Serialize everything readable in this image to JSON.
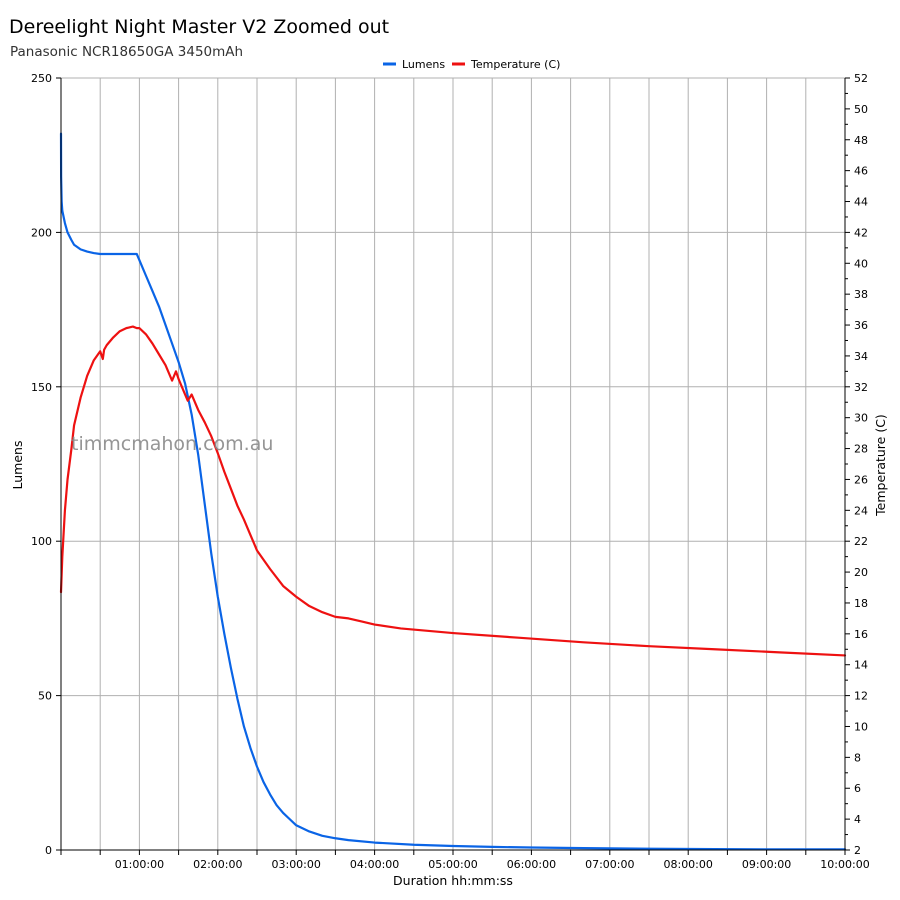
{
  "chart_data": {
    "type": "line",
    "title": "Dereelight Night Master V2 Zoomed out",
    "subtitle": "Panasonic NCR18650GA 3450mAh",
    "watermark": "timmcmahon.com.au",
    "xlabel": "Duration hh:mm:ss",
    "ylabel": "Lumens",
    "y2label": "Temperature (C)",
    "xlim_minutes": [
      0,
      600
    ],
    "ylim": [
      0,
      250
    ],
    "y2lim": [
      2,
      52
    ],
    "x_ticks": [
      {
        "minutes": 60,
        "label": "01:00:00"
      },
      {
        "minutes": 120,
        "label": "02:00:00"
      },
      {
        "minutes": 180,
        "label": "03:00:00"
      },
      {
        "minutes": 240,
        "label": "04:00:00"
      },
      {
        "minutes": 300,
        "label": "05:00:00"
      },
      {
        "minutes": 360,
        "label": "06:00:00"
      },
      {
        "minutes": 420,
        "label": "07:00:00"
      },
      {
        "minutes": 480,
        "label": "08:00:00"
      },
      {
        "minutes": 540,
        "label": "09:00:00"
      },
      {
        "minutes": 600,
        "label": "10:00:00"
      }
    ],
    "y_ticks": [
      "0",
      "50",
      "100",
      "150",
      "200",
      "250"
    ],
    "y2_ticks": [
      "2",
      "4",
      "6",
      "8",
      "10",
      "12",
      "14",
      "16",
      "18",
      "20",
      "22",
      "24",
      "26",
      "28",
      "30",
      "32",
      "34",
      "36",
      "38",
      "40",
      "42",
      "44",
      "46",
      "48",
      "50",
      "52"
    ],
    "grid": true,
    "legend_position": "top-center",
    "series": [
      {
        "name": "Lumens",
        "axis": "left",
        "color": "#0a64e6",
        "x_minutes": [
          0,
          0.1,
          0.5,
          1,
          3,
          5,
          8,
          10,
          15,
          20,
          25,
          30,
          35,
          40,
          45,
          50,
          55,
          58,
          60,
          65,
          70,
          75,
          80,
          85,
          90,
          95,
          100,
          105,
          110,
          115,
          120,
          125,
          130,
          135,
          140,
          145,
          150,
          155,
          160,
          165,
          170,
          175,
          180,
          190,
          200,
          210,
          220,
          240,
          270,
          300,
          330,
          360,
          400,
          450,
          500,
          550,
          600
        ],
        "values": [
          232,
          218,
          210,
          207,
          203,
          200,
          197.5,
          196,
          194.5,
          193.8,
          193.3,
          193,
          193,
          193,
          193,
          193,
          193,
          193,
          191,
          186,
          181,
          176,
          170,
          164,
          158,
          151,
          141,
          128,
          112,
          96,
          82,
          70,
          59,
          49,
          40,
          33,
          27,
          22,
          18,
          14.5,
          12,
          10,
          8,
          6,
          4.6,
          3.8,
          3.2,
          2.4,
          1.7,
          1.3,
          1.0,
          0.8,
          0.6,
          0.4,
          0.3,
          0.2,
          0.2
        ]
      },
      {
        "name": "Temperature (C)",
        "axis": "right",
        "color": "#ee1111",
        "x_minutes": [
          0,
          1,
          3,
          5,
          8,
          10,
          15,
          20,
          25,
          30,
          32,
          33,
          35,
          40,
          45,
          50,
          55,
          58,
          60,
          65,
          70,
          75,
          80,
          85,
          88,
          90,
          95,
          97,
          100,
          105,
          110,
          115,
          120,
          125,
          130,
          135,
          140,
          145,
          150,
          160,
          170,
          180,
          190,
          200,
          210,
          220,
          230,
          240,
          260,
          300,
          350,
          400,
          450,
          500,
          550,
          600
        ],
        "values": [
          18.7,
          21,
          24,
          26,
          28,
          29.5,
          31.3,
          32.7,
          33.7,
          34.3,
          33.8,
          34.4,
          34.7,
          35.2,
          35.6,
          35.8,
          35.9,
          35.8,
          35.8,
          35.4,
          34.8,
          34.1,
          33.4,
          32.4,
          33,
          32.5,
          31.5,
          31.1,
          31.5,
          30.5,
          29.7,
          28.8,
          27.7,
          26.5,
          25.4,
          24.3,
          23.4,
          22.4,
          21.4,
          20.2,
          19.1,
          18.4,
          17.8,
          17.4,
          17.1,
          17.0,
          16.8,
          16.6,
          16.35,
          16.05,
          15.75,
          15.45,
          15.2,
          15.0,
          14.8,
          14.6
        ]
      }
    ]
  }
}
